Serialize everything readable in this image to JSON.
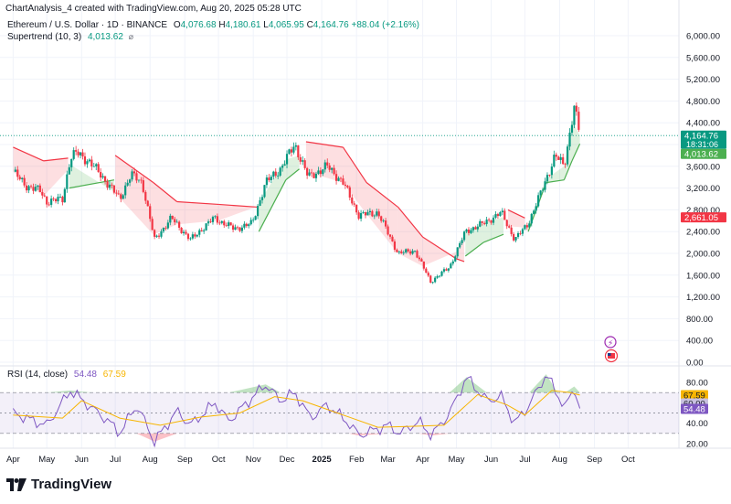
{
  "header": {
    "created_text": "ChartAnalysis_4 created with TradingView.com, Aug 20, 2025 05:28 UTC"
  },
  "legend": {
    "symbol": "Ethereum / U.S. Dollar · 1D · BINANCE",
    "open_label": "O",
    "open": "4,076.68",
    "high_label": "H",
    "high": "4,180.61",
    "low_label": "L",
    "low": "4,065.95",
    "close_label": "C",
    "close": "4,164.76",
    "change": "+88.04 (+2.16%)",
    "supertrend_label": "Supertrend (10, 3)",
    "supertrend_value": "4,013.62",
    "rsi_label": "RSI (14, close)",
    "rsi_value": "54.48",
    "rsi_ma_value": "67.59"
  },
  "colors": {
    "up": "#089981",
    "down": "#f23645",
    "accent": "#2962ff",
    "supertrend_up": "#4caf50",
    "supertrend_down": "#f23645",
    "rsi_line": "#7e57c2",
    "rsi_ma": "#f7b500"
  },
  "brand": {
    "name": "TradingView"
  },
  "chart_data": {
    "type": "candlestick",
    "main": {
      "y_ticks": [
        "6,000.00",
        "5,600.00",
        "5,200.00",
        "4,800.00",
        "4,400.00",
        "4,000.00",
        "3,600.00",
        "3,200.00",
        "2,800.00",
        "2,400.00",
        "2,000.00",
        "1,600.00",
        "1,200.00",
        "800.00",
        "400.00",
        "0.00"
      ],
      "ylim": [
        0,
        6200
      ],
      "price_labels": [
        {
          "value": 4164.76,
          "text": "4,164.76",
          "subtext": "18:31:06",
          "color": "#089981"
        },
        {
          "value": 4013.62,
          "text": "4,013.62",
          "color": "#4caf50"
        },
        {
          "value": 2661.05,
          "text": "2,661.05",
          "color": "#f23645"
        }
      ],
      "price_line": 4164.76,
      "close_series": [
        {
          "x": "2024-04-01",
          "y": 3500
        },
        {
          "x": "2024-04-12",
          "y": 3250
        },
        {
          "x": "2024-04-25",
          "y": 3150
        },
        {
          "x": "2024-05-01",
          "y": 2950
        },
        {
          "x": "2024-05-15",
          "y": 3000
        },
        {
          "x": "2024-05-22",
          "y": 3750
        },
        {
          "x": "2024-05-28",
          "y": 3850
        },
        {
          "x": "2024-06-07",
          "y": 3700
        },
        {
          "x": "2024-06-18",
          "y": 3450
        },
        {
          "x": "2024-07-05",
          "y": 3000
        },
        {
          "x": "2024-07-15",
          "y": 3450
        },
        {
          "x": "2024-07-25",
          "y": 3300
        },
        {
          "x": "2024-08-05",
          "y": 2250
        },
        {
          "x": "2024-08-20",
          "y": 2650
        },
        {
          "x": "2024-09-06",
          "y": 2250
        },
        {
          "x": "2024-09-27",
          "y": 2650
        },
        {
          "x": "2024-10-15",
          "y": 2450
        },
        {
          "x": "2024-10-31",
          "y": 2550
        },
        {
          "x": "2024-11-12",
          "y": 3300
        },
        {
          "x": "2024-11-25",
          "y": 3550
        },
        {
          "x": "2024-12-08",
          "y": 4000
        },
        {
          "x": "2024-12-20",
          "y": 3400
        },
        {
          "x": "2025-01-06",
          "y": 3600
        },
        {
          "x": "2025-01-20",
          "y": 3300
        },
        {
          "x": "2025-02-03",
          "y": 2700
        },
        {
          "x": "2025-02-20",
          "y": 2750
        },
        {
          "x": "2025-03-10",
          "y": 2000
        },
        {
          "x": "2025-03-25",
          "y": 2050
        },
        {
          "x": "2025-04-08",
          "y": 1480
        },
        {
          "x": "2025-04-25",
          "y": 1750
        },
        {
          "x": "2025-05-09",
          "y": 2400
        },
        {
          "x": "2025-05-25",
          "y": 2550
        },
        {
          "x": "2025-06-10",
          "y": 2750
        },
        {
          "x": "2025-06-22",
          "y": 2250
        },
        {
          "x": "2025-07-04",
          "y": 2550
        },
        {
          "x": "2025-07-15",
          "y": 3100
        },
        {
          "x": "2025-07-28",
          "y": 3800
        },
        {
          "x": "2025-08-05",
          "y": 3600
        },
        {
          "x": "2025-08-14",
          "y": 4700
        },
        {
          "x": "2025-08-19",
          "y": 4164.76
        }
      ],
      "supertrend": [
        {
          "x": "2024-04-01",
          "y": 3950,
          "dir": "down"
        },
        {
          "x": "2024-04-28",
          "y": 3700,
          "dir": "down"
        },
        {
          "x": "2024-05-20",
          "y": 3750,
          "dir": "down"
        },
        {
          "x": "2024-05-21",
          "y": 3200,
          "dir": "up"
        },
        {
          "x": "2024-06-30",
          "y": 3350,
          "dir": "up"
        },
        {
          "x": "2024-07-01",
          "y": 3800,
          "dir": "down"
        },
        {
          "x": "2024-08-04",
          "y": 3300,
          "dir": "down"
        },
        {
          "x": "2024-08-25",
          "y": 2950,
          "dir": "down"
        },
        {
          "x": "2024-10-01",
          "y": 2900,
          "dir": "down"
        },
        {
          "x": "2024-11-05",
          "y": 2850,
          "dir": "down"
        },
        {
          "x": "2024-11-06",
          "y": 2400,
          "dir": "up"
        },
        {
          "x": "2024-11-30",
          "y": 3350,
          "dir": "up"
        },
        {
          "x": "2024-12-12",
          "y": 3550,
          "dir": "up"
        },
        {
          "x": "2024-12-18",
          "y": 4050,
          "dir": "down"
        },
        {
          "x": "2025-01-20",
          "y": 3950,
          "dir": "down"
        },
        {
          "x": "2025-02-10",
          "y": 3300,
          "dir": "down"
        },
        {
          "x": "2025-03-10",
          "y": 2850,
          "dir": "down"
        },
        {
          "x": "2025-04-01",
          "y": 2300,
          "dir": "down"
        },
        {
          "x": "2025-05-01",
          "y": 1900,
          "dir": "down"
        },
        {
          "x": "2025-05-08",
          "y": 1850,
          "dir": "down"
        },
        {
          "x": "2025-05-09",
          "y": 1950,
          "dir": "up"
        },
        {
          "x": "2025-05-25",
          "y": 2200,
          "dir": "up"
        },
        {
          "x": "2025-06-12",
          "y": 2350,
          "dir": "up"
        },
        {
          "x": "2025-06-16",
          "y": 2800,
          "dir": "down"
        },
        {
          "x": "2025-07-01",
          "y": 2650,
          "dir": "down"
        },
        {
          "x": "2025-07-04",
          "y": 2400,
          "dir": "up"
        },
        {
          "x": "2025-07-20",
          "y": 3300,
          "dir": "up"
        },
        {
          "x": "2025-08-05",
          "y": 3350,
          "dir": "up"
        },
        {
          "x": "2025-08-12",
          "y": 3700,
          "dir": "up"
        },
        {
          "x": "2025-08-19",
          "y": 4013.62,
          "dir": "up"
        }
      ]
    },
    "rsi": {
      "y_ticks": [
        "80.00",
        "40.00",
        "20.00"
      ],
      "ylim": [
        12,
        90
      ],
      "bands": [
        70,
        50,
        30
      ],
      "rsi_series": [
        {
          "x": "2024-04-01",
          "y": 50
        },
        {
          "x": "2024-04-20",
          "y": 42
        },
        {
          "x": "2024-05-01",
          "y": 38
        },
        {
          "x": "2024-05-22",
          "y": 72
        },
        {
          "x": "2024-06-10",
          "y": 55
        },
        {
          "x": "2024-06-25",
          "y": 42
        },
        {
          "x": "2024-07-05",
          "y": 30
        },
        {
          "x": "2024-07-20",
          "y": 58
        },
        {
          "x": "2024-08-05",
          "y": 22
        },
        {
          "x": "2024-08-25",
          "y": 52
        },
        {
          "x": "2024-09-06",
          "y": 38
        },
        {
          "x": "2024-09-28",
          "y": 60
        },
        {
          "x": "2024-10-10",
          "y": 42
        },
        {
          "x": "2024-11-12",
          "y": 78
        },
        {
          "x": "2024-11-25",
          "y": 62
        },
        {
          "x": "2024-12-08",
          "y": 70
        },
        {
          "x": "2024-12-22",
          "y": 45
        },
        {
          "x": "2025-01-06",
          "y": 58
        },
        {
          "x": "2025-01-25",
          "y": 40
        },
        {
          "x": "2025-02-03",
          "y": 28
        },
        {
          "x": "2025-03-01",
          "y": 38
        },
        {
          "x": "2025-03-12",
          "y": 30
        },
        {
          "x": "2025-03-28",
          "y": 42
        },
        {
          "x": "2025-04-09",
          "y": 28
        },
        {
          "x": "2025-04-25",
          "y": 50
        },
        {
          "x": "2025-05-10",
          "y": 85
        },
        {
          "x": "2025-05-28",
          "y": 62
        },
        {
          "x": "2025-06-10",
          "y": 66
        },
        {
          "x": "2025-06-22",
          "y": 40
        },
        {
          "x": "2025-07-05",
          "y": 58
        },
        {
          "x": "2025-07-20",
          "y": 88
        },
        {
          "x": "2025-07-30",
          "y": 68
        },
        {
          "x": "2025-08-06",
          "y": 55
        },
        {
          "x": "2025-08-14",
          "y": 76
        },
        {
          "x": "2025-08-19",
          "y": 54.48
        }
      ],
      "rsi_ma_series": [
        {
          "x": "2024-04-01",
          "y": 48
        },
        {
          "x": "2024-05-15",
          "y": 45
        },
        {
          "x": "2024-06-01",
          "y": 62
        },
        {
          "x": "2024-07-05",
          "y": 45
        },
        {
          "x": "2024-08-10",
          "y": 38
        },
        {
          "x": "2024-09-15",
          "y": 46
        },
        {
          "x": "2024-10-20",
          "y": 50
        },
        {
          "x": "2024-11-20",
          "y": 66
        },
        {
          "x": "2024-12-15",
          "y": 62
        },
        {
          "x": "2025-01-15",
          "y": 50
        },
        {
          "x": "2025-02-20",
          "y": 36
        },
        {
          "x": "2025-03-25",
          "y": 37
        },
        {
          "x": "2025-04-20",
          "y": 38
        },
        {
          "x": "2025-05-20",
          "y": 68
        },
        {
          "x": "2025-06-15",
          "y": 58
        },
        {
          "x": "2025-07-01",
          "y": 48
        },
        {
          "x": "2025-07-25",
          "y": 72
        },
        {
          "x": "2025-08-10",
          "y": 70
        },
        {
          "x": "2025-08-19",
          "y": 67.59
        }
      ],
      "labels": [
        {
          "value": 67.59,
          "text": "67.59",
          "color": "#f7b500",
          "text_color": "#131722"
        },
        {
          "value": 60,
          "text": "60.00",
          "color": "#c9c1e0",
          "text_color": "#131722"
        },
        {
          "value": 54.48,
          "text": "54.48",
          "color": "#7e57c2",
          "text_color": "#ffffff"
        }
      ]
    },
    "x_axis": {
      "range": [
        "2024-03-26",
        "2025-10-30"
      ],
      "ticks": [
        {
          "x": "2024-04-01",
          "label": "Apr"
        },
        {
          "x": "2024-05-01",
          "label": "May"
        },
        {
          "x": "2024-06-01",
          "label": "Jun"
        },
        {
          "x": "2024-07-01",
          "label": "Jul"
        },
        {
          "x": "2024-08-01",
          "label": "Aug"
        },
        {
          "x": "2024-09-01",
          "label": "Sep"
        },
        {
          "x": "2024-10-01",
          "label": "Oct"
        },
        {
          "x": "2024-11-01",
          "label": "Nov"
        },
        {
          "x": "2024-12-01",
          "label": "Dec"
        },
        {
          "x": "2025-01-01",
          "label": "2025",
          "bold": true
        },
        {
          "x": "2025-02-01",
          "label": "Feb"
        },
        {
          "x": "2025-03-01",
          "label": "Mar"
        },
        {
          "x": "2025-04-01",
          "label": "Apr"
        },
        {
          "x": "2025-05-01",
          "label": "May"
        },
        {
          "x": "2025-06-01",
          "label": "Jun"
        },
        {
          "x": "2025-07-01",
          "label": "Jul"
        },
        {
          "x": "2025-08-01",
          "label": "Aug"
        },
        {
          "x": "2025-09-01",
          "label": "Sep"
        },
        {
          "x": "2025-10-01",
          "label": "Oct"
        }
      ]
    }
  }
}
